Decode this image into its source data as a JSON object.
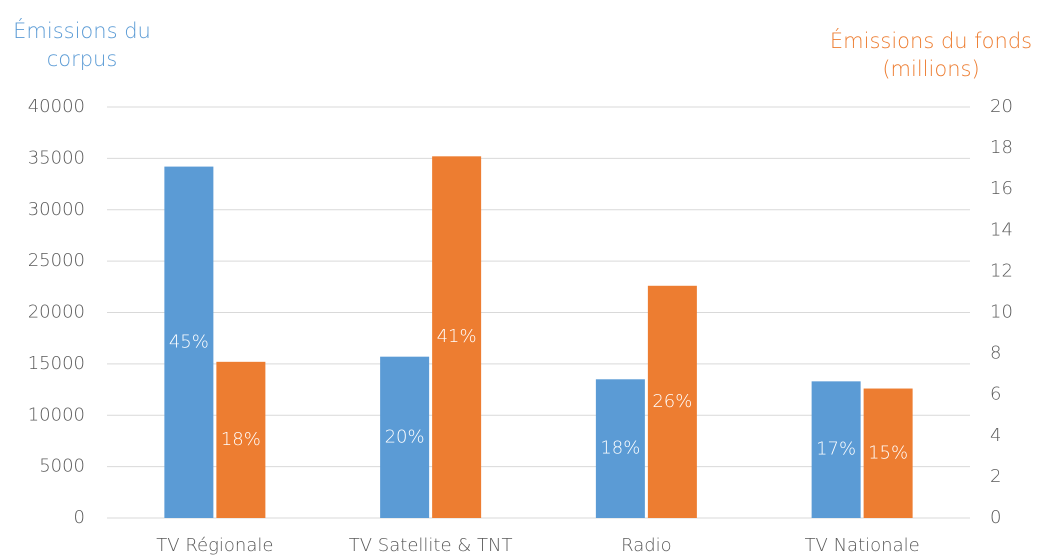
{
  "chart_data": {
    "type": "bar",
    "y_label": [
      "Émissions du",
      "corpus"
    ],
    "y2_label": [
      "Émissions du fonds",
      "(millions)"
    ],
    "y_label_color": "#5b9bd5",
    "y2_label_color": "#ed7d31",
    "categories": [
      "TV Régionale",
      "TV Satellite & TNT",
      "Radio",
      "TV Nationale"
    ],
    "series": [
      {
        "color": "#5b9bd5",
        "values": [
          34200,
          15700,
          13500,
          13300
        ],
        "share_labels": [
          "45%",
          "20%",
          "18%",
          "17%"
        ]
      },
      {
        "color": "#ed7d31",
        "axis": "y2",
        "values": [
          7.6,
          17.6,
          11.3,
          6.3
        ],
        "share_labels": [
          "18%",
          "41%",
          "26%",
          "15%"
        ]
      }
    ],
    "ylim": [
      0,
      40000
    ],
    "yticks": [
      0,
      5000,
      10000,
      15000,
      20000,
      25000,
      30000,
      35000,
      40000
    ],
    "y2lim": [
      0,
      20
    ],
    "y2ticks": [
      0,
      2,
      4,
      6,
      8,
      10,
      12,
      14,
      16,
      18,
      20
    ],
    "grid": true
  }
}
